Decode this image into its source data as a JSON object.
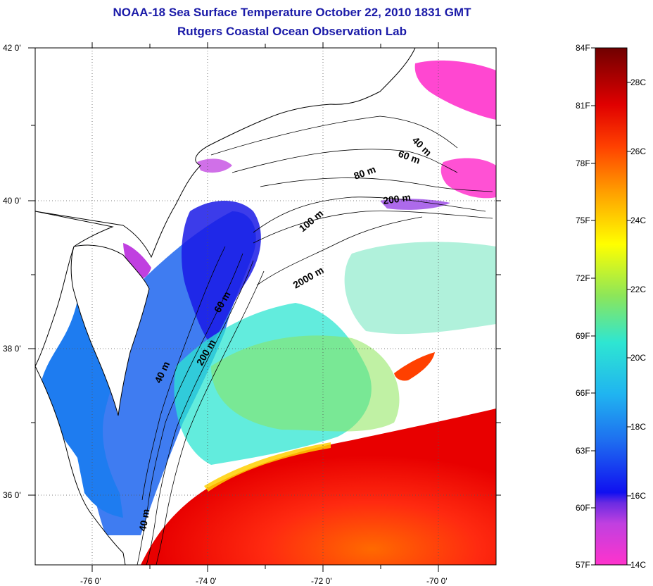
{
  "title": {
    "line1": "NOAA-18 Sea Surface Temperature October 22, 2010 1831 GMT",
    "line2": "Rutgers Coastal Ocean Observation Lab"
  },
  "axes": {
    "lat_labels": [
      "42 0'",
      "40 0'",
      "38 0'",
      "36 0'"
    ],
    "lon_labels": [
      "-76 0'",
      "-74 0'",
      "-72 0'",
      "-70 0'"
    ],
    "grid": "dotted"
  },
  "contours": {
    "labels": [
      "40 m",
      "60 m",
      "80 m",
      "200 m",
      "100 m",
      "2000 m",
      "60 m",
      "40 m",
      "200 m",
      "40 m"
    ]
  },
  "colorbar": {
    "f_labels": [
      "84F",
      "81F",
      "78F",
      "75F",
      "72F",
      "69F",
      "66F",
      "63F",
      "60F",
      "57F"
    ],
    "c_labels": [
      "28C",
      "26C",
      "24C",
      "22C",
      "20C",
      "18C",
      "16C",
      "14C"
    ],
    "colors": [
      "#6b0000",
      "#c80000",
      "#ff2a00",
      "#ff8c00",
      "#ffe600",
      "#9be64b",
      "#2ee6d2",
      "#1e8cf0",
      "#1a1ae6",
      "#8a2be2",
      "#ff33cc"
    ]
  },
  "palette": {
    "title_color": "#1a1aa8",
    "land": "#ffffff",
    "coast": "#000000"
  }
}
